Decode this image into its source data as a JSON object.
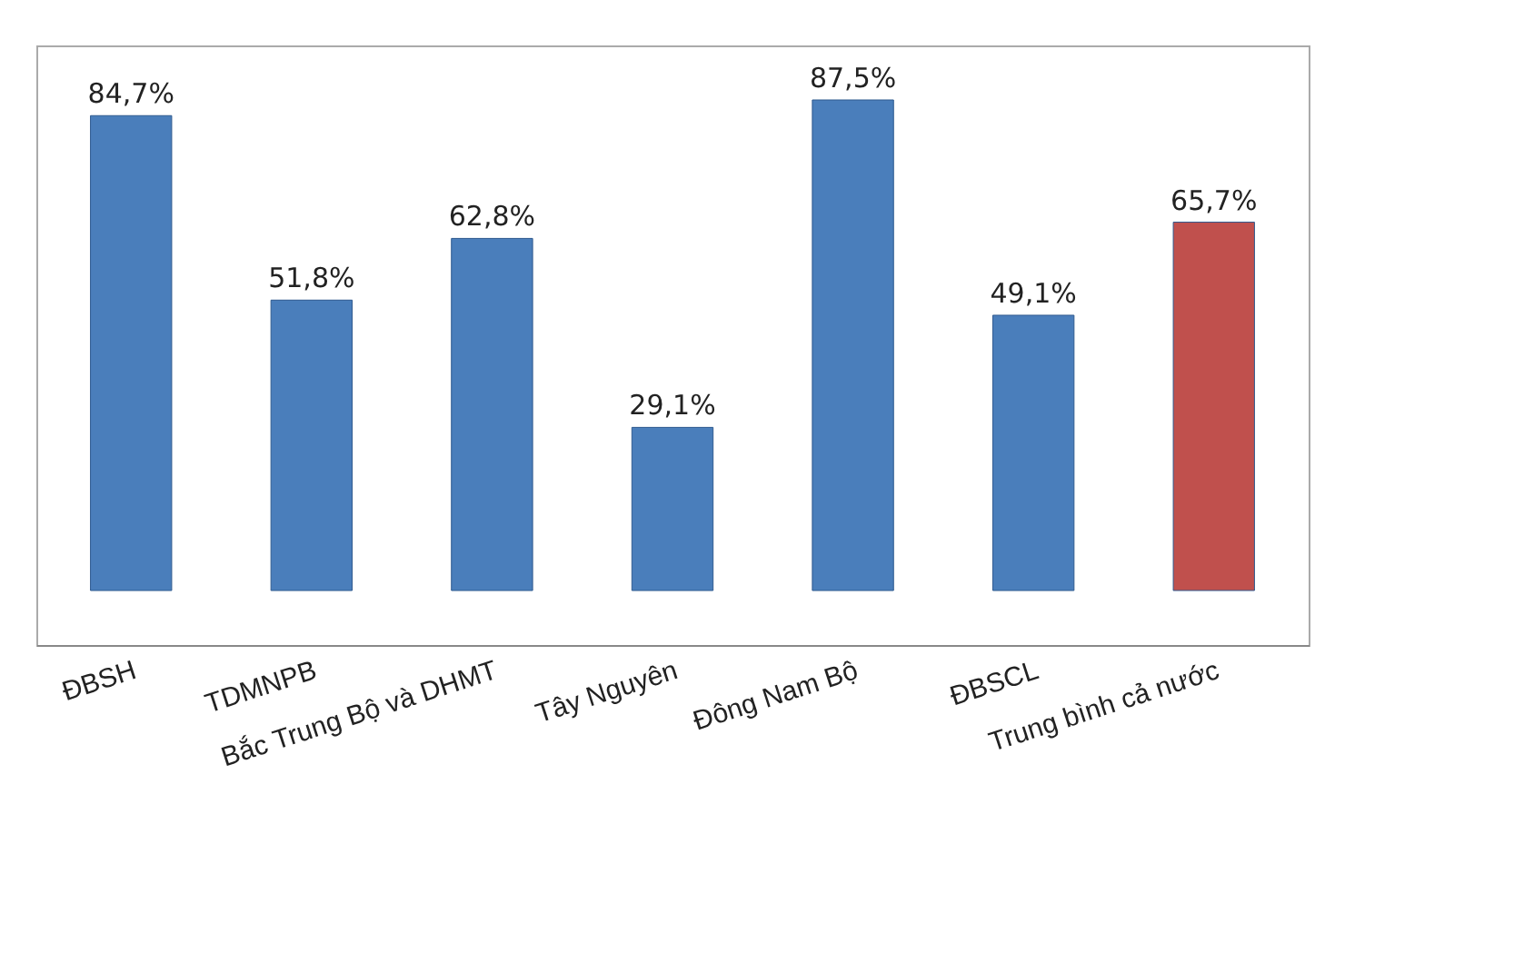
{
  "chart_data": {
    "type": "bar",
    "categories": [
      "ĐBSH",
      "TDMNPB",
      "Bắc Trung Bộ và DHMT",
      "Tây Nguyên",
      "Đông Nam Bộ",
      "ĐBSCL",
      "Trung bình cả nước"
    ],
    "values": [
      84.7,
      51.8,
      62.8,
      29.1,
      87.5,
      49.1,
      65.7
    ],
    "colors": [
      "#4a7ebb",
      "#4a7ebb",
      "#4a7ebb",
      "#4a7ebb",
      "#4a7ebb",
      "#4a7ebb",
      "#c0504d"
    ],
    "value_labels": [
      "84,7%",
      "51,8%",
      "62,8%",
      "29,1%",
      "87,5%",
      "49,1%",
      "65,7%"
    ]
  }
}
